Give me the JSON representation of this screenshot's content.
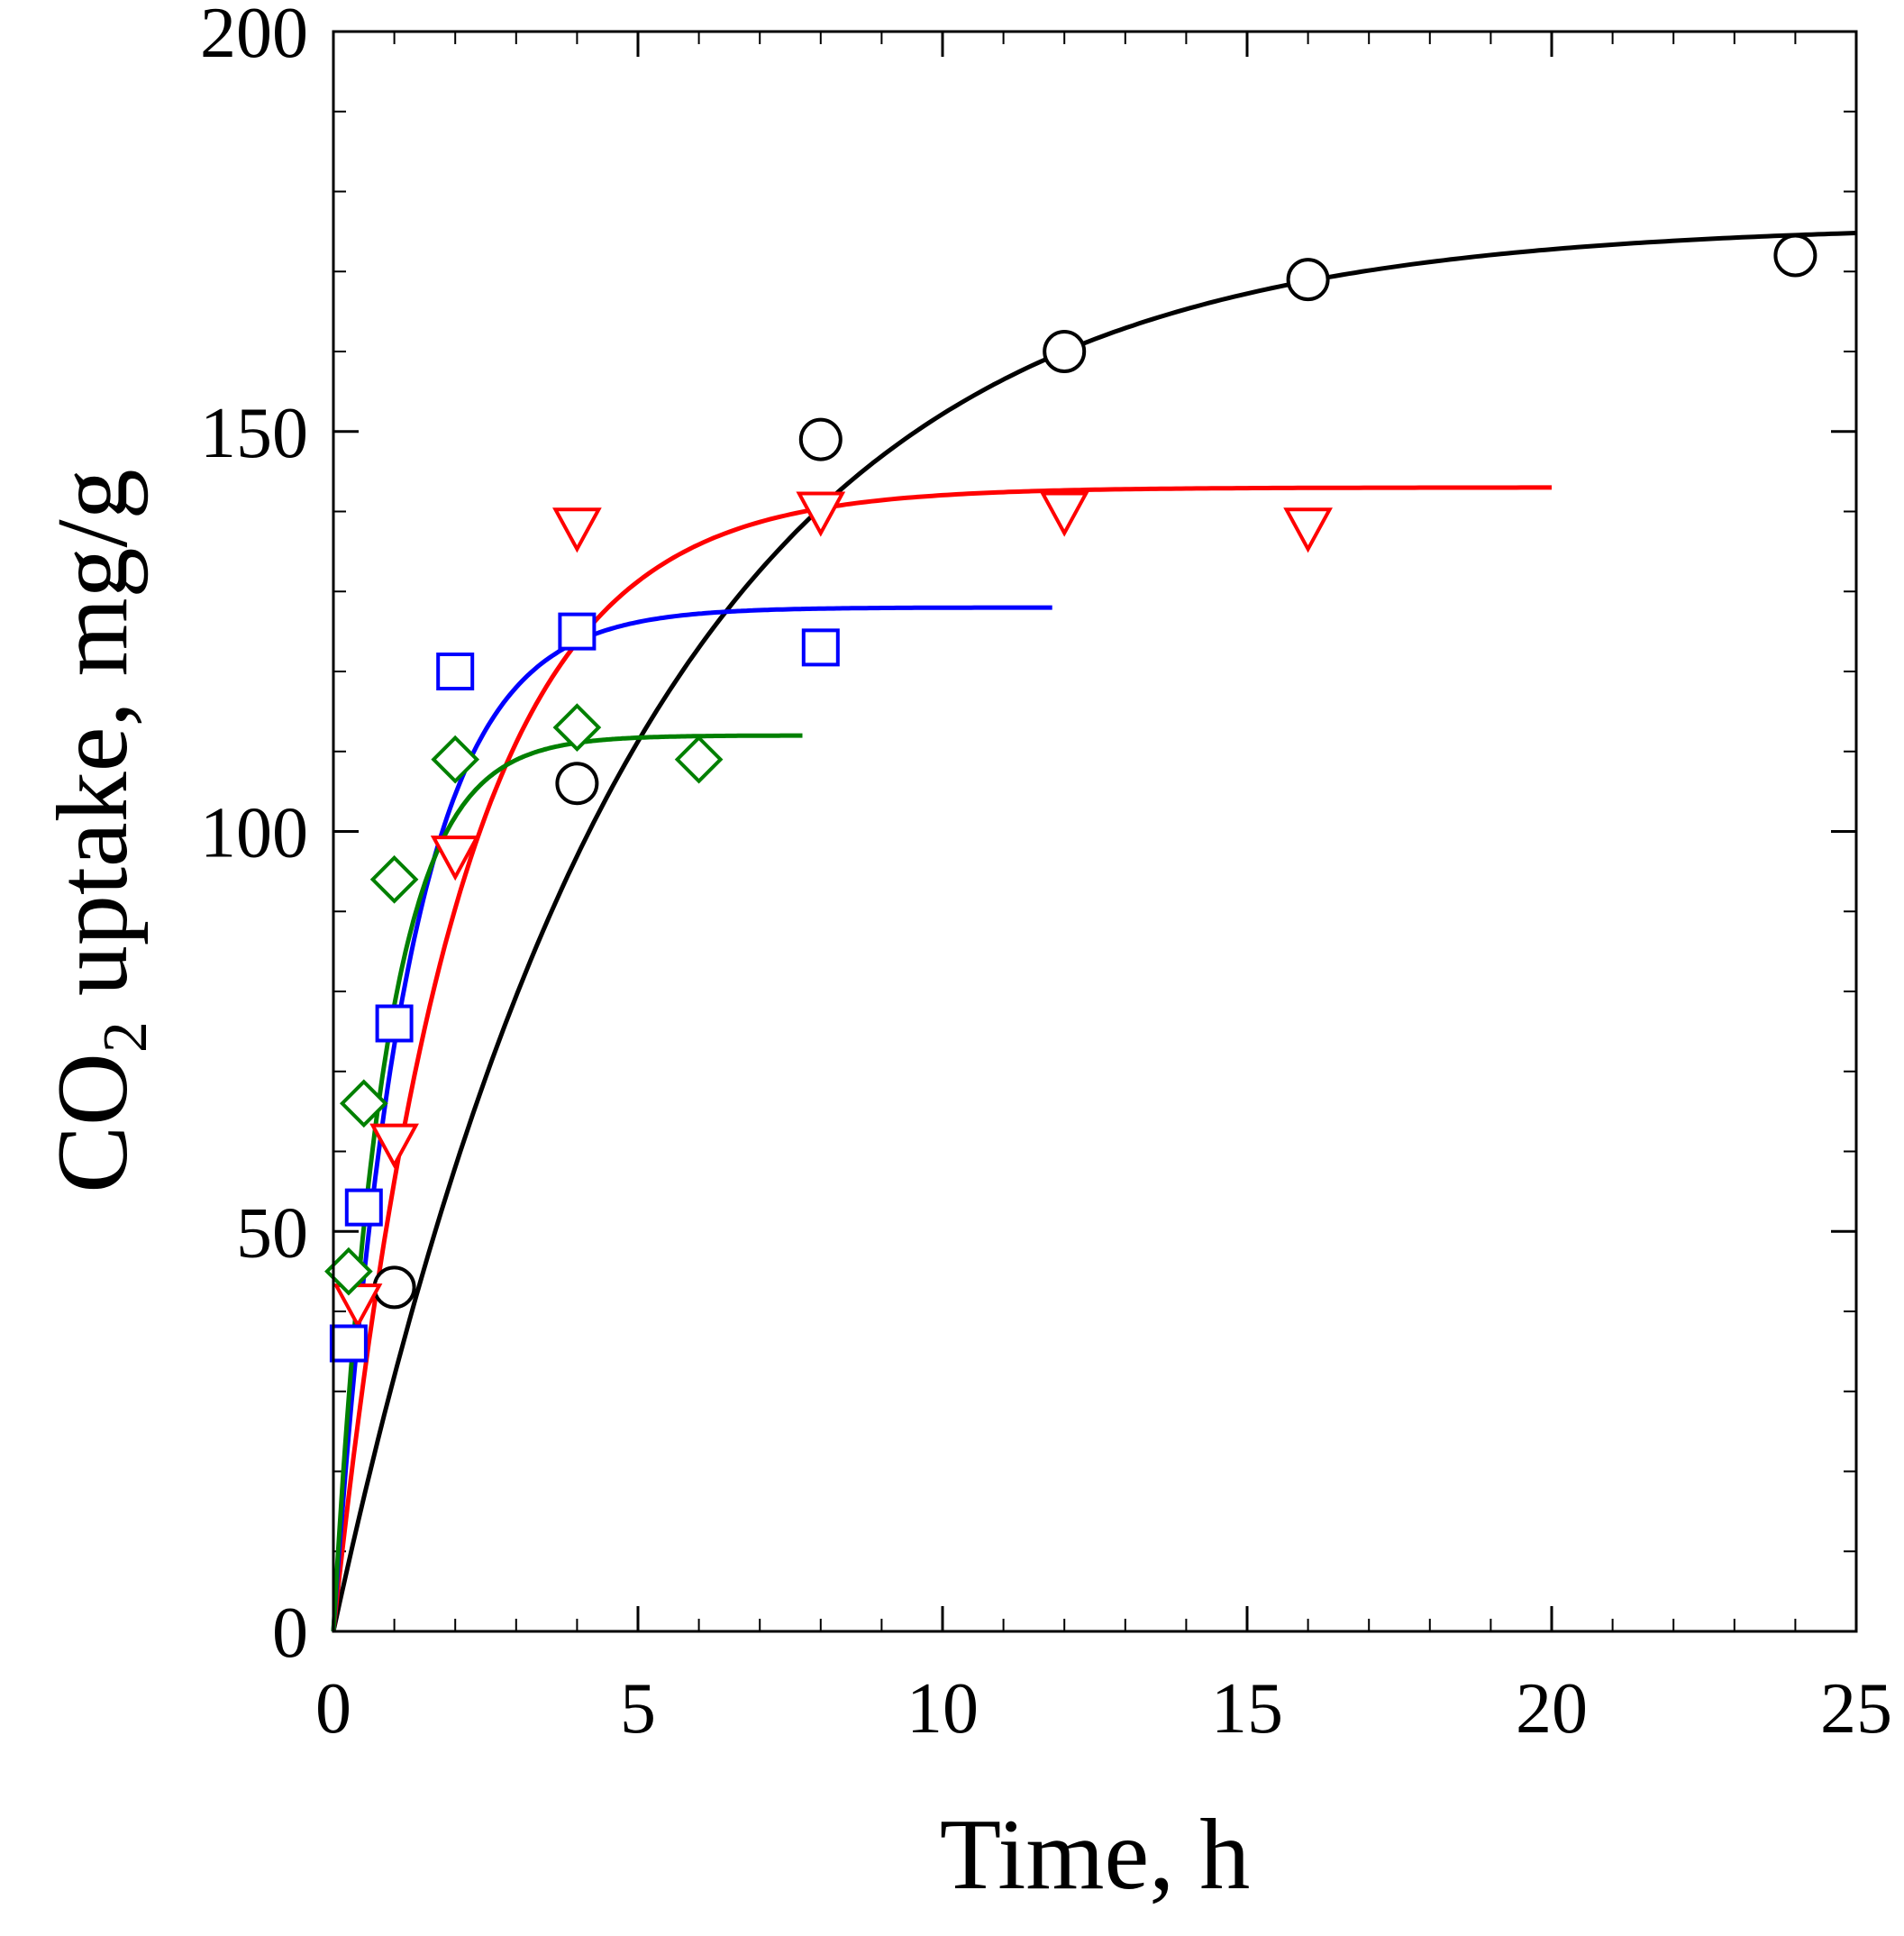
{
  "chart_data": {
    "type": "scatter",
    "title": "",
    "xlabel": "Time, h",
    "ylabel_parts": {
      "prefix": "CO",
      "subscript": "2",
      "suffix": " uptake, mg/g"
    },
    "xlim": [
      0,
      25
    ],
    "ylim": [
      0,
      200
    ],
    "x_ticks": [
      0,
      5,
      10,
      15,
      20,
      25
    ],
    "y_ticks": [
      0,
      50,
      100,
      150,
      200
    ],
    "x_tick_labels": [
      "0",
      "5",
      "10",
      "15",
      "20",
      "25"
    ],
    "y_tick_labels": [
      "0",
      "50",
      "100",
      "150",
      "200"
    ],
    "x_minor_step": 1,
    "y_minor_step": 10,
    "grid": false,
    "legend": null,
    "series": [
      {
        "name": "black-circles",
        "color": "#000000",
        "marker": "circle",
        "points": [
          [
            1,
            43
          ],
          [
            4,
            106
          ],
          [
            8,
            149
          ],
          [
            12,
            160
          ],
          [
            16,
            169
          ],
          [
            24,
            172
          ]
        ],
        "fit": {
          "qe": 176,
          "k": 0.2,
          "x_end": 25
        }
      },
      {
        "name": "red-triangles",
        "color": "#ff0000",
        "marker": "triangle-down",
        "points": [
          [
            0.4,
            41
          ],
          [
            1,
            61
          ],
          [
            2,
            97
          ],
          [
            4,
            138
          ],
          [
            8,
            140
          ],
          [
            12,
            140
          ],
          [
            16,
            138
          ]
        ],
        "fit": {
          "qe": 143,
          "k": 0.5,
          "x_end": 20
        }
      },
      {
        "name": "blue-squares",
        "color": "#0000ff",
        "marker": "square",
        "points": [
          [
            0.25,
            36
          ],
          [
            0.5,
            53
          ],
          [
            1,
            76
          ],
          [
            2,
            120
          ],
          [
            4,
            125
          ],
          [
            8,
            123
          ]
        ],
        "fit": {
          "qe": 128,
          "k": 0.85,
          "x_end": 11.8
        }
      },
      {
        "name": "green-diamonds",
        "color": "#008000",
        "marker": "diamond",
        "points": [
          [
            0.25,
            45
          ],
          [
            0.5,
            66
          ],
          [
            1,
            94
          ],
          [
            2,
            109
          ],
          [
            4,
            113
          ],
          [
            6,
            109
          ]
        ],
        "fit": {
          "qe": 112,
          "k": 1.2,
          "x_end": 7.7
        }
      }
    ]
  }
}
